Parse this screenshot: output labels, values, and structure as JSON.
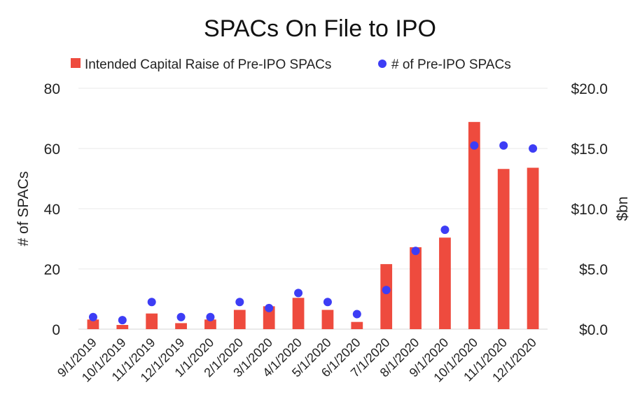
{
  "chart_data": {
    "type": "bar",
    "title": "SPACs On File to IPO",
    "categories": [
      "9/1/2019",
      "10/1/2019",
      "11/1/2019",
      "12/1/2019",
      "1/1/2020",
      "2/1/2020",
      "3/1/2020",
      "4/1/2020",
      "5/1/2020",
      "6/1/2020",
      "7/1/2020",
      "8/1/2020",
      "9/1/2020",
      "10/1/2020",
      "11/1/2020",
      "12/1/2020"
    ],
    "series": [
      {
        "name": "Intended Capital Raise of Pre-IPO SPACs",
        "kind": "bar",
        "axis": "right",
        "color": "#ee4b3e",
        "values": [
          0.8,
          0.35,
          1.3,
          0.5,
          0.8,
          1.6,
          1.9,
          2.6,
          1.6,
          0.6,
          5.4,
          6.8,
          7.6,
          17.2,
          13.3,
          13.4
        ]
      },
      {
        "name": "# of Pre-IPO SPACs",
        "kind": "scatter",
        "axis": "left",
        "color": "#3d3df5",
        "values": [
          4,
          3,
          9,
          4,
          4,
          9,
          7,
          12,
          9,
          5,
          13,
          26,
          33,
          61,
          61,
          60
        ]
      }
    ],
    "ylabel": "# of SPACs",
    "ylim": [
      0,
      80
    ],
    "yticks": [
      "0",
      "20",
      "40",
      "60",
      "80"
    ],
    "y2label": "$bn",
    "y2lim": [
      0,
      20
    ],
    "y2ticks": [
      "$0.0",
      "$5.0",
      "$10.0",
      "$15.0",
      "$20.0"
    ],
    "grid": true,
    "legend_position": "top"
  }
}
